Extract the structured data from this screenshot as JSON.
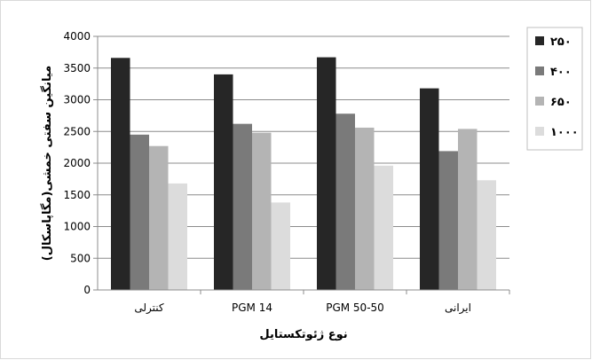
{
  "chart_data": {
    "type": "bar",
    "categories": [
      "کنترلی",
      "14 PGM",
      "50-50 PGM",
      "ایرانی"
    ],
    "series": [
      {
        "name": "۲۵۰",
        "values": [
          3660,
          3400,
          3670,
          3180
        ],
        "color": "#262626"
      },
      {
        "name": "۴۰۰",
        "values": [
          2450,
          2620,
          2780,
          2190
        ],
        "color": "#7a7a7a"
      },
      {
        "name": "۶۵۰",
        "values": [
          2270,
          2480,
          2560,
          2540
        ],
        "color": "#b4b4b4"
      },
      {
        "name": "۱۰۰۰",
        "values": [
          1680,
          1380,
          1960,
          1730
        ],
        "color": "#dcdcdc"
      }
    ],
    "ylim": [
      0,
      4000
    ],
    "yticks": [
      0,
      500,
      1000,
      1500,
      2000,
      2500,
      3000,
      3500,
      4000
    ],
    "xlabel": "نوع ژئوتکستایل",
    "ylabel": "میانگین سفتی خمشی(مگاپاسکال)",
    "grid": true,
    "legend_position": "top-right"
  }
}
